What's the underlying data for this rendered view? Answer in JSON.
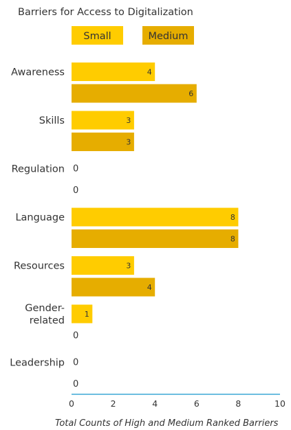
{
  "chart_data": {
    "type": "bar",
    "orientation": "horizontal",
    "title": "Barriers for Access to Digitalization",
    "categories": [
      "Awareness",
      "Skills",
      "Regulation",
      "Language",
      "Resources",
      "Gender-related",
      "Leadership"
    ],
    "category_lines": [
      [
        "Awareness"
      ],
      [
        "Skills"
      ],
      [
        "Regulation"
      ],
      [
        "Language"
      ],
      [
        "Resources"
      ],
      [
        "Gender-",
        "related"
      ],
      [
        "Leadership"
      ]
    ],
    "series": [
      {
        "name": "Small",
        "color": "#FFCC00",
        "values": [
          4,
          3,
          0,
          8,
          3,
          1,
          0
        ]
      },
      {
        "name": "Medium",
        "color": "#E6AD00",
        "values": [
          6,
          3,
          0,
          8,
          4,
          0,
          0
        ]
      }
    ],
    "xlabel": "Total Counts of High and Medium Ranked Barriers",
    "ylabel": "",
    "xlim": [
      0,
      10
    ],
    "xticks": [
      0,
      2,
      4,
      6,
      8,
      10
    ],
    "axis_color": "#3BA7D6",
    "grid": false,
    "legend": "top"
  }
}
